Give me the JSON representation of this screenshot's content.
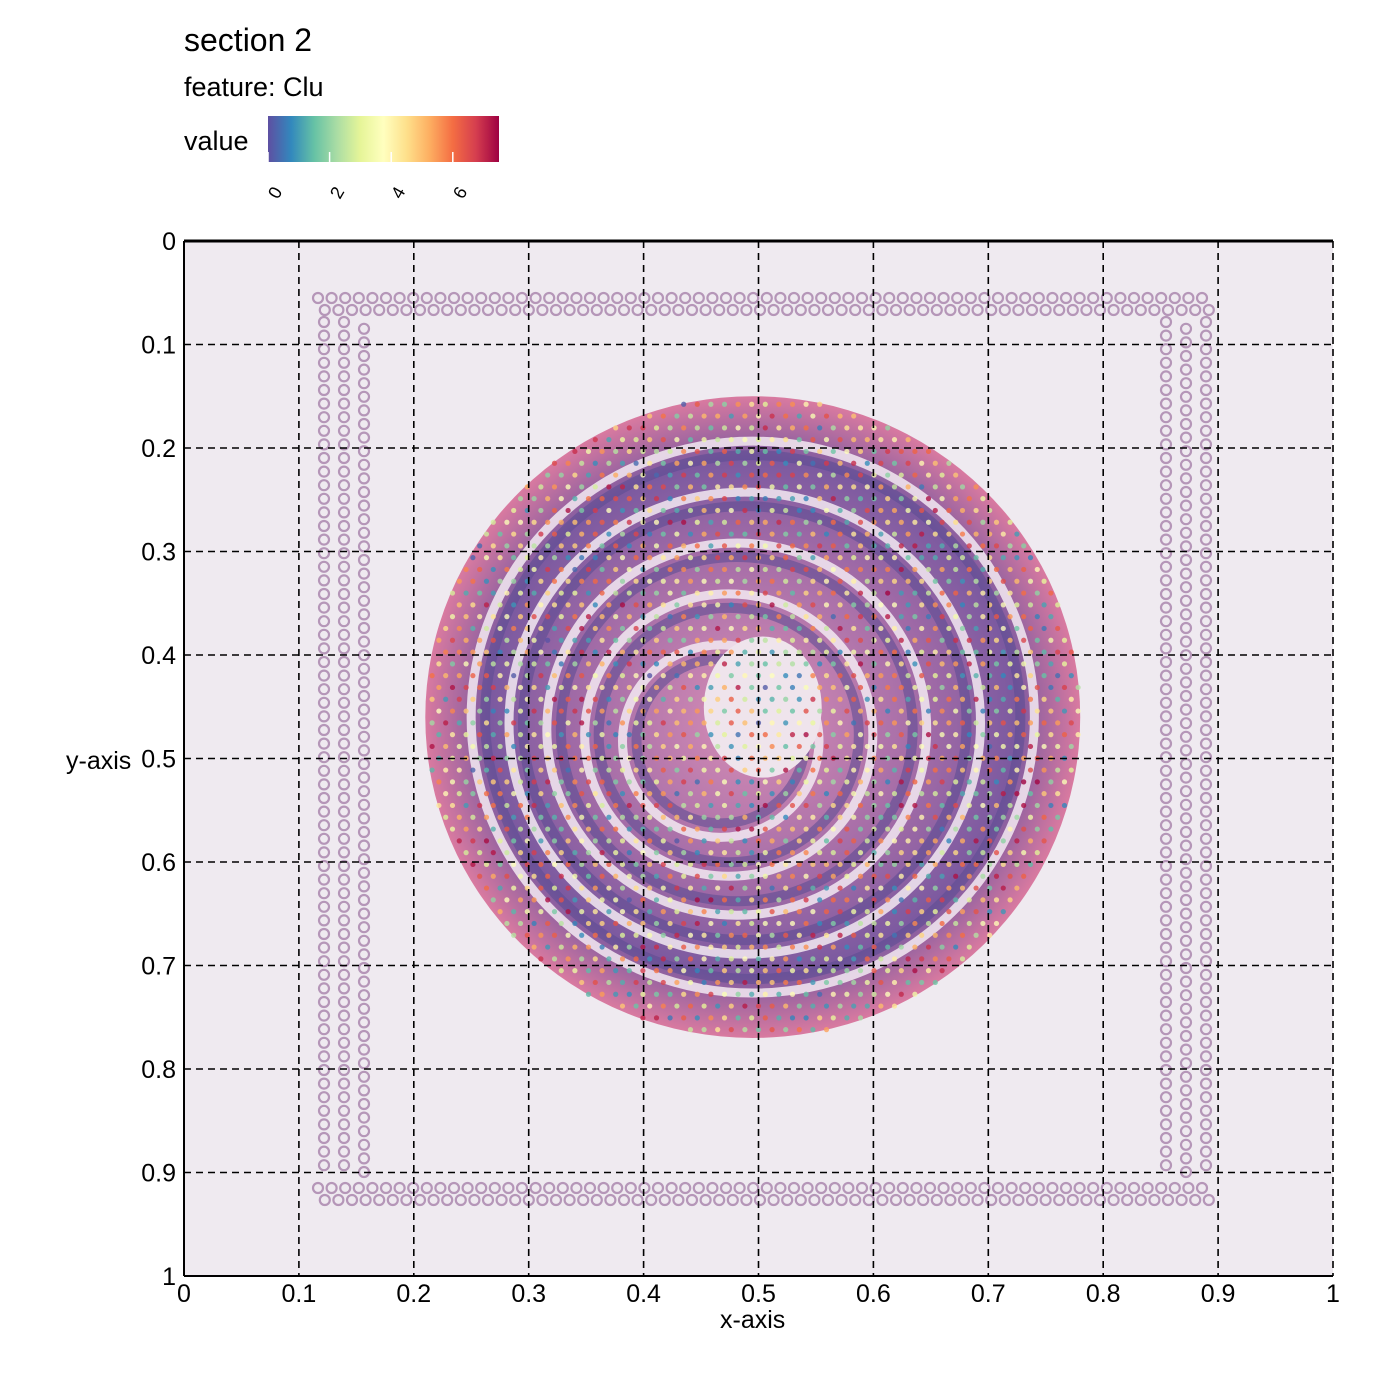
{
  "title": "section 2",
  "subtitle": "feature:  Clu",
  "legend": {
    "label": "value",
    "ticks": [
      "0",
      "2",
      "4",
      "6"
    ],
    "range": [
      0,
      7.5
    ],
    "palette": [
      "#5e4fa2",
      "#3288bd",
      "#66c2a5",
      "#abdda4",
      "#e6f598",
      "#ffffbf",
      "#fee08b",
      "#fdae61",
      "#f46d43",
      "#d53e4f",
      "#9e0142"
    ]
  },
  "chart_data": {
    "type": "scatter",
    "title": "section 2",
    "subtitle": "feature:  Clu",
    "xlabel": "x-axis",
    "ylabel": "y-axis",
    "xlim": [
      0,
      1
    ],
    "ylim": [
      0,
      1
    ],
    "y_reversed": true,
    "grid": true,
    "grid_style": "dashed",
    "x_ticks": [
      "0",
      "0.1",
      "0.2",
      "0.3",
      "0.4",
      "0.5",
      "0.6",
      "0.7",
      "0.8",
      "0.9",
      "1"
    ],
    "y_ticks": [
      "0",
      "0.1",
      "0.2",
      "0.3",
      "0.4",
      "0.5",
      "0.6",
      "0.7",
      "0.8",
      "0.9",
      "1"
    ],
    "background": "H&E tissue section image with spatial spots colored by Clu expression",
    "tissue_region": {
      "x": [
        0.21,
        0.78
      ],
      "y": [
        0.15,
        0.77
      ]
    }
  }
}
